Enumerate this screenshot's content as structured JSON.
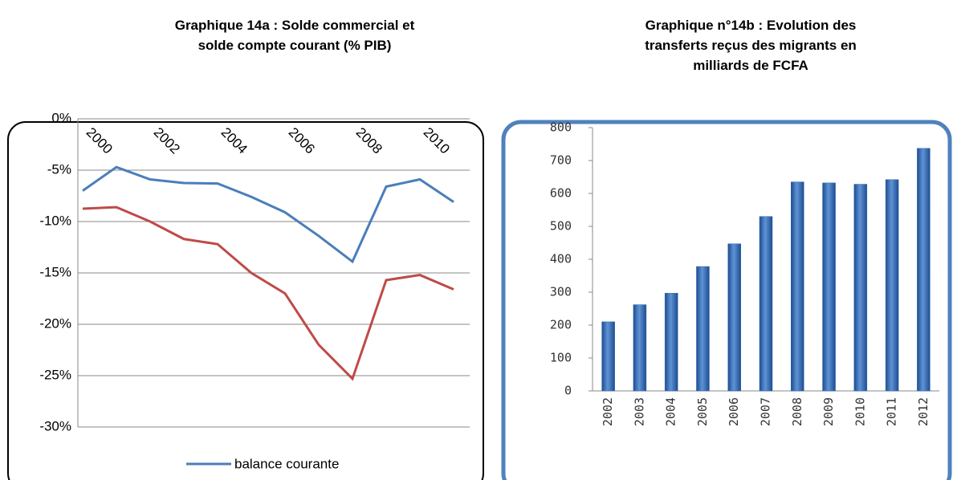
{
  "chart_data": [
    {
      "type": "line",
      "title": [
        "Graphique 14a : Solde commercial et",
        "solde compte courant (% PIB)"
      ],
      "categories": [
        "2000",
        null,
        "2002",
        null,
        "2004",
        null,
        "2006",
        null,
        "2008",
        null,
        "2010",
        null
      ],
      "series": [
        {
          "name": "balance courante",
          "color": "#4a7ebb",
          "values": [
            -7.0,
            -4.7,
            -5.9,
            -6.25,
            -6.3,
            -7.6,
            -9.1,
            -11.4,
            -13.9,
            -6.6,
            -5.9,
            -8.1
          ]
        },
        {
          "color": "#be4b48",
          "values": [
            -8.75,
            -8.6,
            -10.0,
            -11.7,
            -12.2,
            -15.0,
            -17.0,
            -22.0,
            -25.3,
            -15.7,
            -15.2,
            -16.6
          ]
        }
      ],
      "ylim": [
        -30,
        0
      ],
      "yticks": [
        {
          "value": 0,
          "label": "0%"
        },
        {
          "value": -5,
          "label": "-5%"
        },
        {
          "value": -10,
          "label": "-10%"
        },
        {
          "value": -15,
          "label": "-15%"
        },
        {
          "value": -20,
          "label": "-20%"
        },
        {
          "value": -25,
          "label": "-25%"
        },
        {
          "value": -30,
          "label": "-30%"
        }
      ],
      "grid": true,
      "legend": "bottom"
    },
    {
      "type": "bar",
      "title": [
        "Graphique n°14b : Evolution  des",
        "transferts reçus des migrants en",
        "milliards de FCFA"
      ],
      "categories": [
        "2002",
        "2003",
        "2004",
        "2005",
        "2006",
        "2007",
        "2008",
        "2009",
        "2010",
        "2011",
        "2012"
      ],
      "values": [
        210,
        262,
        297,
        378,
        447,
        530,
        635,
        632,
        628,
        642,
        737
      ],
      "color": "#2f66b0",
      "ylim": [
        0,
        800
      ],
      "yticks": [
        0,
        100,
        200,
        300,
        400,
        500,
        600,
        700,
        800
      ],
      "grid": false
    }
  ]
}
